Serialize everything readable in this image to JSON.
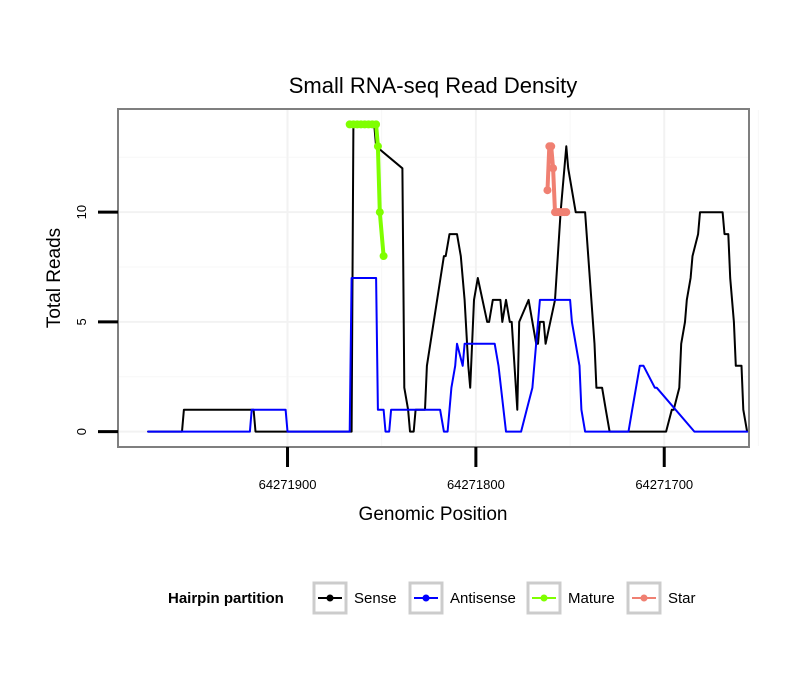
{
  "chart_data": {
    "type": "line",
    "title": "Small RNA-seq Read Density",
    "xlabel": "Genomic Position",
    "ylabel": "Total Reads",
    "xlim": [
      64271990,
      64271655
    ],
    "x_reversed": true,
    "ylim": [
      -0.7,
      14.7
    ],
    "x_ticks": [
      64271900,
      64271800,
      64271700
    ],
    "y_ticks": [
      0,
      5,
      10
    ],
    "grid": true,
    "legend": {
      "title": "Hairpin partition",
      "position": "bottom",
      "entries": [
        {
          "label": "Sense",
          "color": "#000000"
        },
        {
          "label": "Antisense",
          "color": "#0000ff"
        },
        {
          "label": "Mature",
          "color": "#7fff00"
        },
        {
          "label": "Star",
          "color": "#f08072"
        }
      ]
    },
    "series": [
      {
        "name": "Sense",
        "color": "#000000",
        "x": [
          64271974,
          64271956,
          64271955,
          64271918,
          64271917,
          64271866,
          64271865,
          64271854,
          64271853,
          64271839,
          64271838,
          64271836,
          64271835,
          64271833,
          64271832,
          64271827,
          64271826,
          64271817,
          64271816,
          64271814,
          64271813,
          64271810,
          64271808,
          64271807,
          64271806,
          64271804,
          64271803,
          64271801,
          64271799,
          64271794,
          64271793,
          64271791,
          64271790,
          64271787,
          64271786,
          64271784,
          64271782,
          64271781,
          64271778,
          64271777,
          64271772,
          64271770,
          64271768,
          64271767,
          64271766,
          64271764,
          64271763,
          64271758,
          64271755,
          64271752,
          64271751,
          64271747,
          64271744,
          64271742,
          64271737,
          64271736,
          64271733,
          64271731,
          64271729,
          64271727,
          64271726,
          64271724,
          64271720,
          64271712,
          64271700,
          64271699,
          64271696,
          64271695,
          64271692,
          64271691,
          64271689,
          64271688,
          64271686,
          64271685,
          64271682,
          64271681,
          64271669,
          64271668,
          64271666,
          64271665,
          64271663,
          64271662,
          64271659,
          64271658,
          64271656
        ],
        "y": [
          0,
          0,
          1,
          1,
          0,
          0,
          14,
          14,
          13,
          12,
          2,
          1,
          0,
          0,
          1,
          1,
          3,
          8,
          8,
          9,
          9,
          9,
          8,
          7,
          6,
          3,
          2,
          6,
          7,
          5,
          5,
          6,
          6,
          6,
          5,
          6,
          5,
          5,
          1,
          5,
          6,
          5,
          4,
          4,
          5,
          5,
          4,
          6,
          10,
          13,
          12,
          10,
          10,
          10,
          4,
          2,
          2,
          1,
          0,
          0,
          0,
          0,
          0,
          0,
          0,
          0,
          1,
          1,
          2,
          4,
          5,
          6,
          7,
          8,
          9,
          10,
          10,
          9,
          9,
          7,
          5,
          3,
          3,
          1,
          0
        ]
      },
      {
        "name": "Antisense",
        "color": "#0000ff",
        "x": [
          64271974,
          64271920,
          64271919,
          64271901,
          64271900,
          64271870,
          64271867,
          64271866,
          64271853,
          64271852,
          64271849,
          64271848,
          64271846,
          64271845,
          64271833,
          64271831,
          64271819,
          64271817,
          64271815,
          64271813,
          64271811,
          64271810,
          64271807,
          64271806,
          64271801,
          64271799,
          64271798,
          64271790,
          64271788,
          64271784,
          64271783,
          64271776,
          64271773,
          64271770,
          64271766,
          64271763,
          64271750,
          64271749,
          64271745,
          64271744,
          64271742,
          64271737,
          64271736,
          64271719,
          64271717,
          64271713,
          64271711,
          64271705,
          64271704,
          64271684,
          64271670,
          64271656
        ],
        "y": [
          0,
          0,
          1,
          1,
          0,
          0,
          0,
          7,
          7,
          1,
          1,
          0,
          0,
          1,
          1,
          1,
          1,
          0,
          0,
          2,
          3,
          4,
          3,
          4,
          4,
          4,
          4,
          4,
          3,
          0,
          0,
          0,
          1,
          2,
          6,
          6,
          6,
          5,
          3,
          1,
          0,
          0,
          0,
          0,
          1,
          3,
          3,
          2,
          2,
          0,
          0,
          0
        ]
      },
      {
        "name": "Mature",
        "color": "#7fff00",
        "marker": true,
        "x": [
          64271867,
          64271865,
          64271863,
          64271861,
          64271859,
          64271857,
          64271855,
          64271853,
          64271852,
          64271851,
          64271849
        ],
        "y": [
          14,
          14,
          14,
          14,
          14,
          14,
          14,
          14,
          13,
          10,
          8
        ]
      },
      {
        "name": "Star",
        "color": "#f08072",
        "marker": true,
        "x": [
          64271762,
          64271761,
          64271760,
          64271759,
          64271758,
          64271757,
          64271756,
          64271755,
          64271754,
          64271753,
          64271752
        ],
        "y": [
          11,
          13,
          13,
          12,
          10,
          10,
          10,
          10,
          10,
          10,
          10
        ]
      }
    ]
  }
}
